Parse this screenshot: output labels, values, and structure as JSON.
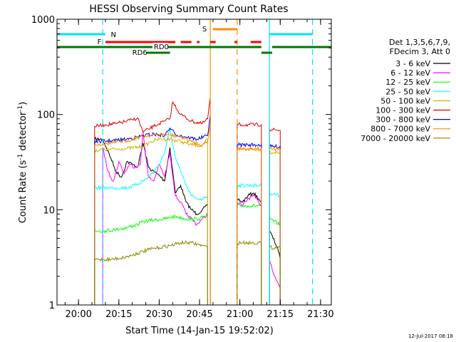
{
  "chart_data": {
    "type": "line",
    "title": "HESSI Observing Summary Count Rates",
    "xlabel": "Start Time (14-Jan-15 19:52:02)",
    "ylabel_main": "Count Rate (s",
    "ylabel_sup1": "-1",
    "ylabel_mid": " detector",
    "ylabel_sup2": "-1",
    "ylabel_end": ")",
    "y_scale": "log",
    "ylim": [
      1,
      1000
    ],
    "xlim": [
      "19:52",
      "21:34"
    ],
    "x_ticks": [
      "20:00",
      "20:15",
      "20:30",
      "20:45",
      "21:00",
      "21:15",
      "21:30"
    ],
    "y_ticks": [
      {
        "value": 1,
        "label": "1"
      },
      {
        "value": 10,
        "label": "10"
      },
      {
        "value": 100,
        "label": "100"
      },
      {
        "value": 1000,
        "label": "1000"
      }
    ],
    "footer_date": "12-Jul-2017 08:18",
    "legend": {
      "header": [
        "Det 1,3,5,6,7,9,",
        "FDecim 3, Att 0"
      ],
      "placement": "right"
    },
    "flags": [
      {
        "label": "N",
        "color": "#00e5ee",
        "segments": [
          [
            "19:52",
            "20:10"
          ],
          [
            "21:11",
            "21:27"
          ]
        ]
      },
      {
        "label": "F",
        "color": "#ff0000",
        "segments": [
          [
            "20:10",
            "20:36"
          ],
          [
            "20:38",
            "20:42"
          ],
          [
            "20:44",
            "20:45"
          ],
          [
            "20:49",
            "20:51"
          ],
          [
            "20:58",
            "20:59"
          ],
          [
            "21:04",
            "21:08"
          ]
        ]
      },
      {
        "label": "S",
        "color": "#ff8c00",
        "segments": [
          [
            "20:50",
            "20:59"
          ]
        ]
      },
      {
        "label": "RD0",
        "color": "#007700",
        "segments": [
          [
            "19:52",
            "21:08"
          ],
          [
            "21:12",
            "21:34"
          ]
        ]
      },
      {
        "label": "RD6",
        "color": "#007700",
        "segments": [
          [
            "20:24",
            "20:34"
          ],
          [
            "21:08",
            "21:12"
          ]
        ]
      }
    ],
    "vlines": [
      {
        "time": "20:09",
        "color": "#00e5ee",
        "style": "dashed"
      },
      {
        "time": "20:49",
        "color": "#ff8c00",
        "style": "solid"
      },
      {
        "time": "20:59",
        "color": "#ff8c00",
        "style": "dashed"
      },
      {
        "time": "21:11",
        "color": "#00e5ee",
        "style": "solid"
      },
      {
        "time": "21:27",
        "color": "#00e5ee",
        "style": "dashed"
      }
    ],
    "series": [
      {
        "name": "3 - 6 keV",
        "color": "#000000",
        "segments": [
          {
            "t": [
              "20:06",
              "20:09",
              "20:12",
              "20:14",
              "20:16",
              "20:18",
              "20:20",
              "20:22",
              "20:24",
              "20:26",
              "20:28",
              "20:30",
              "20:32",
              "20:34",
              "20:36",
              "20:38",
              "20:40",
              "20:42",
              "20:44",
              "20:46",
              "20:48"
            ],
            "v": [
              55,
              55,
              35,
              25,
              22,
              32,
              30,
              28,
              50,
              28,
              25,
              23,
              20,
              45,
              15,
              18,
              12,
              10,
              9,
              10,
              11
            ]
          },
          {
            "t": [
              "20:59",
              "21:01",
              "21:03",
              "21:05",
              "21:07",
              "21:08"
            ],
            "v": [
              13,
              12,
              14,
              15,
              13,
              12
            ]
          },
          {
            "t": [
              "21:11",
              "21:14",
              "21:15"
            ],
            "v": [
              6,
              4,
              3
            ]
          }
        ]
      },
      {
        "name": "6 - 12 keV",
        "color": "#ff00ff",
        "segments": [
          {
            "t": [
              "20:09",
              "20:11",
              "20:13",
              "20:15",
              "20:17",
              "20:19",
              "20:21",
              "20:23",
              "20:24",
              "20:26",
              "20:28",
              "20:30",
              "20:32",
              "20:34",
              "20:36",
              "20:38",
              "20:40",
              "20:42",
              "20:44",
              "20:46",
              "20:48"
            ],
            "v": [
              45,
              25,
              20,
              32,
              24,
              30,
              28,
              30,
              65,
              22,
              20,
              30,
              22,
              40,
              14,
              12,
              9,
              8,
              7,
              8,
              9
            ]
          },
          {
            "t": [
              "20:59",
              "21:01",
              "21:03",
              "21:05",
              "21:07",
              "21:08"
            ],
            "v": [
              12,
              11,
              13,
              14,
              12,
              11
            ]
          },
          {
            "t": [
              "21:11",
              "21:13",
              "21:15"
            ],
            "v": [
              3,
              2,
              1.5
            ]
          }
        ]
      },
      {
        "name": "12 - 25 keV",
        "color": "#00ff00",
        "segments": [
          {
            "t": [
              "20:06",
              "20:10",
              "20:14",
              "20:18",
              "20:22",
              "20:24",
              "20:28",
              "20:32",
              "20:36",
              "20:40",
              "20:44",
              "20:48"
            ],
            "v": [
              6,
              6,
              6.2,
              6.5,
              7,
              7.5,
              7.8,
              8,
              8.5,
              8,
              8,
              8.5
            ]
          },
          {
            "t": [
              "20:59",
              "21:03",
              "21:08"
            ],
            "v": [
              11,
              11,
              11
            ]
          },
          {
            "t": [
              "21:11",
              "21:15"
            ],
            "v": [
              8,
              7
            ]
          }
        ]
      },
      {
        "name": "25 - 50 keV",
        "color": "#00ffff",
        "segments": [
          {
            "t": [
              "20:06",
              "20:12",
              "20:18",
              "20:21",
              "20:24",
              "20:26",
              "20:28",
              "20:30",
              "20:32",
              "20:34",
              "20:36",
              "20:38",
              "20:40",
              "20:42",
              "20:44",
              "20:46",
              "20:48"
            ],
            "v": [
              17,
              17,
              17,
              18,
              20,
              22,
              25,
              30,
              40,
              70,
              35,
              25,
              18,
              14,
              13,
              13,
              14
            ]
          },
          {
            "t": [
              "20:59",
              "21:03",
              "21:08"
            ],
            "v": [
              18,
              18,
              18
            ]
          },
          {
            "t": [
              "21:11",
              "21:15"
            ],
            "v": [
              15,
              14
            ]
          }
        ]
      },
      {
        "name": "50 - 100 keV",
        "color": "#d4b000",
        "segments": [
          {
            "t": [
              "20:06",
              "20:12",
              "20:18",
              "20:24",
              "20:27",
              "20:30",
              "20:34",
              "20:38",
              "20:42",
              "20:46",
              "20:48"
            ],
            "v": [
              42,
              43,
              44,
              46,
              52,
              55,
              55,
              52,
              48,
              47,
              55
            ]
          },
          {
            "t": [
              "20:59",
              "21:03",
              "21:08"
            ],
            "v": [
              43,
              43,
              43
            ]
          },
          {
            "t": [
              "21:11",
              "21:15"
            ],
            "v": [
              40,
              40
            ]
          }
        ]
      },
      {
        "name": "100 - 300 keV",
        "color": "#dd0000",
        "segments": [
          {
            "t": [
              "20:06",
              "20:10",
              "20:14",
              "20:18",
              "20:20",
              "20:22",
              "20:24",
              "20:26",
              "20:28",
              "20:30",
              "20:32",
              "20:34",
              "20:35",
              "20:38",
              "20:42",
              "20:46",
              "20:48",
              "20:49"
            ],
            "v": [
              75,
              78,
              80,
              85,
              88,
              92,
              65,
              70,
              75,
              80,
              85,
              90,
              135,
              100,
              85,
              80,
              90,
              150
            ]
          },
          {
            "t": [
              "20:59",
              "21:03",
              "21:08"
            ],
            "v": [
              78,
              78,
              78
            ]
          },
          {
            "t": [
              "21:11",
              "21:15"
            ],
            "v": [
              70,
              68
            ]
          }
        ]
      },
      {
        "name": "300 - 800 keV",
        "color": "#0000ee",
        "segments": [
          {
            "t": [
              "20:06",
              "20:12",
              "20:18",
              "20:22",
              "20:24",
              "20:28",
              "20:32",
              "20:34",
              "20:36",
              "20:40",
              "20:44",
              "20:48",
              "20:49"
            ],
            "v": [
              52,
              53,
              55,
              58,
              60,
              62,
              60,
              72,
              62,
              58,
              55,
              60,
              100
            ]
          },
          {
            "t": [
              "20:59",
              "21:03",
              "21:08"
            ],
            "v": [
              48,
              48,
              48
            ]
          },
          {
            "t": [
              "21:11",
              "21:15"
            ],
            "v": [
              46,
              46
            ]
          }
        ]
      },
      {
        "name": "800 - 7000 keV",
        "color": "#ff8c00",
        "segments": [
          {
            "t": [
              "20:06",
              "20:12",
              "20:18",
              "20:22",
              "20:26",
              "20:30",
              "20:34",
              "20:38",
              "20:42",
              "20:46",
              "20:48",
              "20:49"
            ],
            "v": [
              48,
              50,
              53,
              57,
              60,
              62,
              61,
              58,
              52,
              48,
              52,
              80
            ]
          },
          {
            "t": [
              "20:59",
              "21:03",
              "21:08"
            ],
            "v": [
              44,
              44,
              44
            ]
          },
          {
            "t": [
              "21:11",
              "21:15"
            ],
            "v": [
              43,
              43
            ]
          }
        ]
      },
      {
        "name": "7000 - 20000 keV",
        "color": "#8b8b00",
        "segments": [
          {
            "t": [
              "20:06",
              "20:12",
              "20:18",
              "20:22",
              "20:26",
              "20:30",
              "20:34",
              "20:38",
              "20:42",
              "20:46",
              "20:48"
            ],
            "v": [
              3,
              3,
              3.2,
              3.5,
              3.8,
              4,
              4.2,
              4.5,
              4.5,
              4.2,
              4
            ]
          },
          {
            "t": [
              "20:59",
              "21:03",
              "21:08"
            ],
            "v": [
              4.5,
              4.5,
              4.5
            ]
          },
          {
            "t": [
              "21:11",
              "21:15"
            ],
            "v": [
              4,
              4
            ]
          }
        ]
      }
    ]
  }
}
